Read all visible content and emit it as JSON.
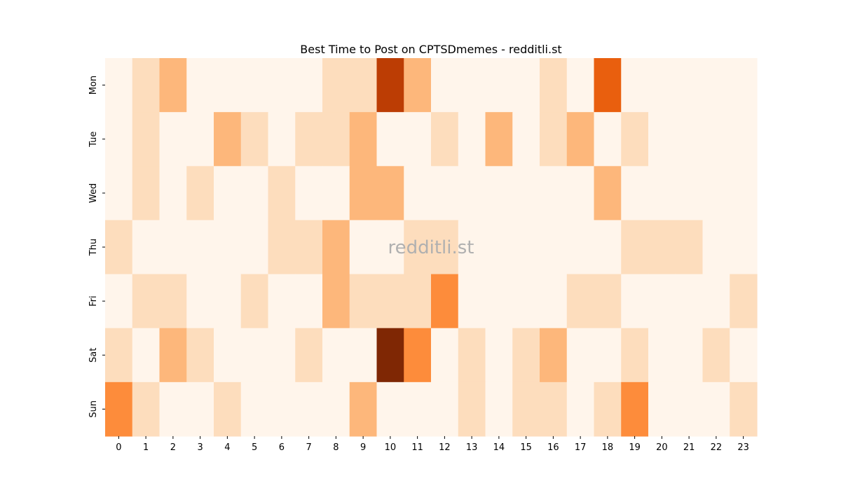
{
  "chart_data": {
    "type": "heatmap",
    "title": "Best Time to Post on CPTSDmemes - redditli.st",
    "xlabel": "",
    "ylabel": "",
    "x_categories": [
      "0",
      "1",
      "2",
      "3",
      "4",
      "5",
      "6",
      "7",
      "8",
      "9",
      "10",
      "11",
      "12",
      "13",
      "14",
      "15",
      "16",
      "17",
      "18",
      "19",
      "20",
      "21",
      "22",
      "23"
    ],
    "y_categories": [
      "Mon",
      "Tue",
      "Wed",
      "Thu",
      "Fri",
      "Sat",
      "Sun"
    ],
    "values": [
      [
        0,
        1,
        3,
        0,
        0,
        0,
        0,
        0,
        1,
        1,
        8,
        3,
        0,
        0,
        0,
        0,
        1,
        0,
        6,
        0,
        0,
        0,
        0,
        0
      ],
      [
        0,
        1,
        0,
        0,
        3,
        1,
        0,
        1,
        1,
        3,
        0,
        0,
        1,
        0,
        3,
        0,
        1,
        3,
        0,
        1,
        0,
        0,
        0,
        0
      ],
      [
        0,
        1,
        0,
        1,
        0,
        0,
        1,
        0,
        0,
        3,
        3,
        0,
        0,
        0,
        0,
        0,
        0,
        0,
        3,
        0,
        0,
        0,
        0,
        0
      ],
      [
        1,
        0,
        0,
        0,
        0,
        0,
        1,
        1,
        3,
        0,
        0,
        1,
        1,
        0,
        0,
        0,
        0,
        0,
        0,
        1,
        1,
        1,
        0,
        0
      ],
      [
        0,
        1,
        1,
        0,
        0,
        1,
        0,
        0,
        3,
        1,
        1,
        1,
        5,
        0,
        0,
        0,
        0,
        1,
        1,
        0,
        0,
        0,
        0,
        1
      ],
      [
        1,
        0,
        3,
        1,
        0,
        0,
        0,
        1,
        0,
        0,
        10,
        5,
        0,
        1,
        0,
        1,
        3,
        0,
        0,
        1,
        0,
        0,
        1,
        0
      ],
      [
        5,
        1,
        0,
        0,
        1,
        0,
        0,
        0,
        0,
        3,
        0,
        0,
        0,
        1,
        0,
        1,
        1,
        0,
        1,
        5,
        0,
        0,
        0,
        1
      ]
    ],
    "colormap": "Oranges",
    "colors": {
      "0": "#fff5eb",
      "1": "#fdddbd",
      "3": "#fdb77b",
      "5": "#fd8c3b",
      "6": "#e95f0e",
      "8": "#bc3d04",
      "10": "#7f2704"
    },
    "colorbar": false,
    "grid": false
  },
  "watermark": "redditli.st"
}
